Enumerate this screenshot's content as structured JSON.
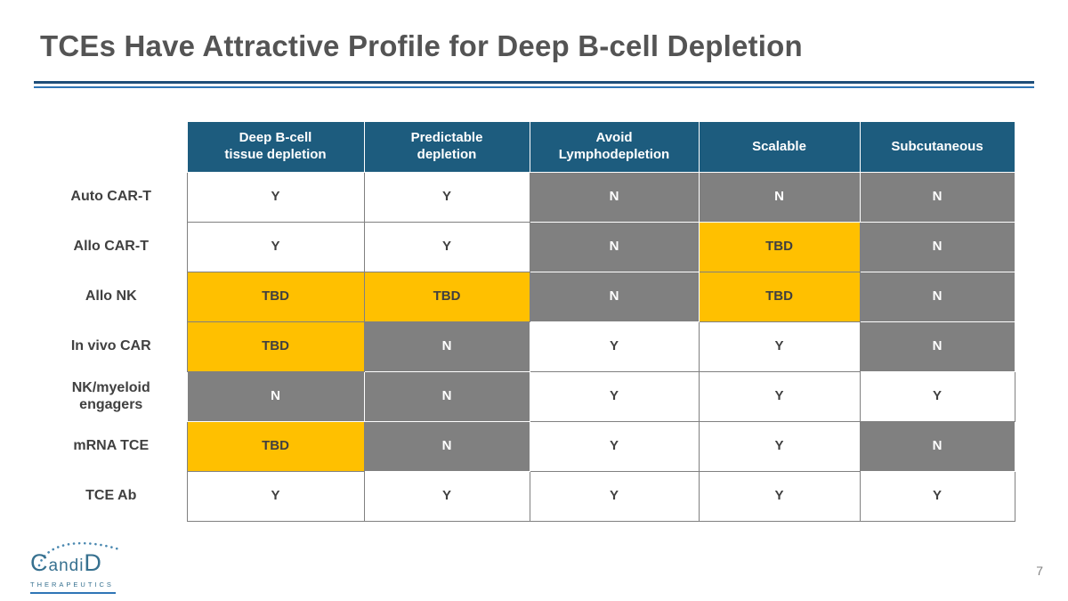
{
  "slide": {
    "title": "TCEs Have Attractive Profile for Deep B-cell Depletion",
    "page_number": "7"
  },
  "table": {
    "columns": [
      "Deep B-cell\ntissue depletion",
      "Predictable\ndepletion",
      "Avoid\nLymphodepletion",
      "Scalable",
      "Subcutaneous"
    ],
    "rows": [
      {
        "label": "Auto CAR-T",
        "cells": [
          "Y",
          "Y",
          "N",
          "N",
          "N"
        ]
      },
      {
        "label": "Allo CAR-T",
        "cells": [
          "Y",
          "Y",
          "N",
          "TBD",
          "N"
        ]
      },
      {
        "label": "Allo NK",
        "cells": [
          "TBD",
          "TBD",
          "N",
          "TBD",
          "N"
        ]
      },
      {
        "label": "In vivo CAR",
        "cells": [
          "TBD",
          "N",
          "Y",
          "Y",
          "N"
        ]
      },
      {
        "label": "NK/myeloid\nengagers",
        "cells": [
          "N",
          "N",
          "Y",
          "Y",
          "Y"
        ]
      },
      {
        "label": "mRNA TCE",
        "cells": [
          "TBD",
          "N",
          "Y",
          "Y",
          "N"
        ]
      },
      {
        "label": "TCE Ab",
        "cells": [
          "Y",
          "Y",
          "Y",
          "Y",
          "Y"
        ]
      }
    ],
    "cell_styles": {
      "Y": {
        "bg": "#FFFFFF",
        "fg": "#404040"
      },
      "N": {
        "bg": "#808080",
        "fg": "#FFFFFF"
      },
      "TBD": {
        "bg": "#FFC000",
        "fg": "#404040"
      }
    }
  },
  "logo": {
    "brand_c": "C",
    "brand_mid": "andi",
    "brand_d": "D",
    "subtext": "THERAPEUTICS"
  },
  "colors": {
    "header_bg": "#1D5C7E",
    "header_fg": "#FFFFFF",
    "title": "#545454",
    "divider_dark": "#1F4E79",
    "divider_light": "#2E75B6"
  }
}
